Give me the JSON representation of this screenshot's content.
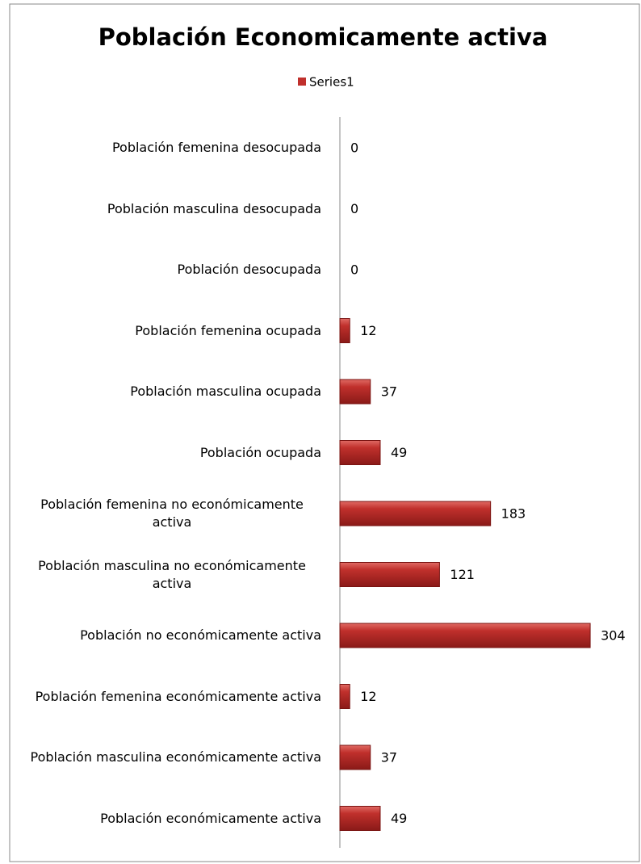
{
  "chart_data": {
    "type": "bar",
    "orientation": "horizontal",
    "title": "Población Economicamente activa",
    "categories": [
      "Población femenina desocupada",
      "Población masculina desocupada",
      "Población desocupada",
      "Población femenina ocupada",
      "Población masculina ocupada",
      "Población ocupada",
      "Población femenina no económicamente activa",
      "Población masculina no económicamente activa",
      "Población no económicamente activa",
      "Población femenina económicamente activa",
      "Población masculina económicamente activa",
      "Población económicamente activa"
    ],
    "series": [
      {
        "name": "Series1",
        "color": "#c0302c",
        "values": [
          0,
          0,
          0,
          12,
          37,
          49,
          183,
          121,
          304,
          12,
          37,
          49
        ]
      }
    ],
    "xlim": [
      0,
      350
    ],
    "grid": false,
    "legend": "top"
  }
}
